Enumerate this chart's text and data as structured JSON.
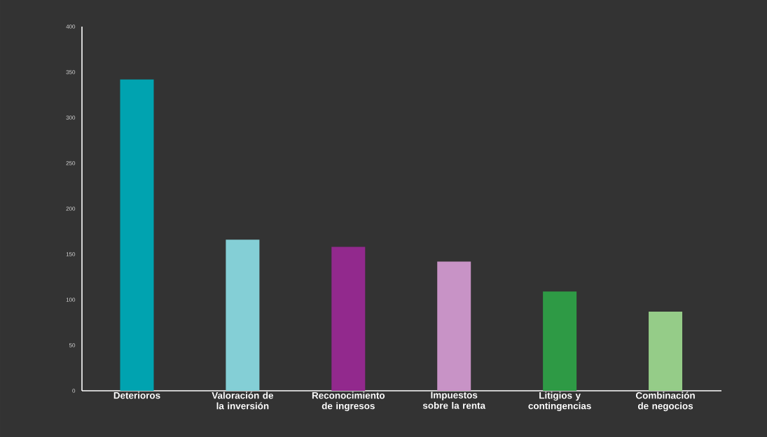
{
  "chart_data": {
    "type": "bar",
    "categories": [
      "Deterioros",
      "Valoración de la inversión",
      "Reconocimiento de ingresos",
      "Impuestos sobre la renta",
      "Litigios y contingencias",
      "Combinación de negocios"
    ],
    "values": [
      342,
      166,
      158,
      142,
      109,
      87
    ],
    "colors": [
      "#00a3b0",
      "#84cfd6",
      "#92298d",
      "#c893c6",
      "#2e9a45",
      "#95cc88"
    ],
    "ylim": [
      0,
      400
    ],
    "yticks": [
      0,
      50,
      100,
      150,
      200,
      250,
      300,
      350,
      400
    ]
  }
}
